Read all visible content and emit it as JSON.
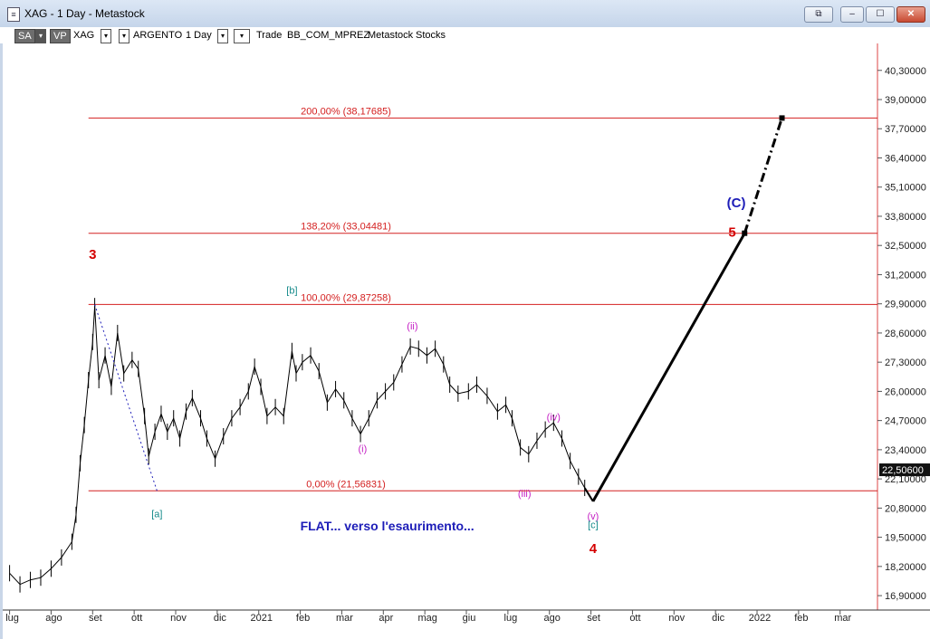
{
  "window": {
    "title": "XAG - 1 Day - Metastock",
    "buttons": {
      "restore": "⧉",
      "minimize": "–",
      "maximize": "☐",
      "close": "✕"
    }
  },
  "toolbar": {
    "sa": "SA",
    "vp": "VP",
    "symbol": "XAG",
    "name": "ARGENTO",
    "period": "1 Day",
    "trade": "Trade",
    "layout": "BB_COM_MPREZ",
    "source": "Metastock",
    "type": "Stocks",
    "box_glyph": "▾"
  },
  "colors": {
    "fib": "#d42020",
    "wave_major": "#d40000",
    "wave_c": "#1d1db8",
    "wave_minor": "#c41fc4",
    "wave_ab": "#148a8a",
    "price": "#000000"
  },
  "chart_data": {
    "type": "line",
    "symbol": "XAG",
    "ylim": [
      16.5,
      41.5
    ],
    "y_ticks": [
      "40,30000",
      "39,00000",
      "37,70000",
      "36,40000",
      "35,10000",
      "33,80000",
      "32,50000",
      "31,20000",
      "29,90000",
      "28,60000",
      "27,30000",
      "26,00000",
      "24,70000",
      "23,40000",
      "22,10000",
      "20,80000",
      "19,50000",
      "18,20000",
      "16,90000"
    ],
    "x_labels": [
      "lug",
      "ago",
      "set",
      "ott",
      "nov",
      "dic",
      "2021",
      "feb",
      "mar",
      "apr",
      "mag",
      "giu",
      "lug",
      "ago",
      "set",
      "ott",
      "nov",
      "dic",
      "2022",
      "feb",
      "mar"
    ],
    "last_price": "22,50600",
    "fib_levels": [
      {
        "label": "200,00% (38,17685)",
        "value": 38.17685
      },
      {
        "label": "138,20% (33,04481)",
        "value": 33.04481
      },
      {
        "label": "100,00% (29,87258)",
        "value": 29.87258
      },
      {
        "label": "0,00% (21,56831)",
        "value": 21.56831
      }
    ],
    "price_series": [
      {
        "t": 0,
        "v": 17.9
      },
      {
        "t": 0.25,
        "v": 17.4
      },
      {
        "t": 0.5,
        "v": 17.6
      },
      {
        "t": 0.75,
        "v": 17.7
      },
      {
        "t": 1,
        "v": 18.1
      },
      {
        "t": 1.25,
        "v": 18.6
      },
      {
        "t": 1.5,
        "v": 19.3
      },
      {
        "t": 1.6,
        "v": 20.5
      },
      {
        "t": 1.7,
        "v": 22.8
      },
      {
        "t": 1.8,
        "v": 24.5
      },
      {
        "t": 1.9,
        "v": 26.5
      },
      {
        "t": 2.0,
        "v": 28.2
      },
      {
        "t": 2.05,
        "v": 29.8
      },
      {
        "t": 2.15,
        "v": 26.5
      },
      {
        "t": 2.3,
        "v": 27.6
      },
      {
        "t": 2.45,
        "v": 26.2
      },
      {
        "t": 2.6,
        "v": 28.6
      },
      {
        "t": 2.75,
        "v": 26.8
      },
      {
        "t": 2.95,
        "v": 27.4
      },
      {
        "t": 3.1,
        "v": 27.0
      },
      {
        "t": 3.25,
        "v": 24.9
      },
      {
        "t": 3.35,
        "v": 23.1
      },
      {
        "t": 3.5,
        "v": 24.2
      },
      {
        "t": 3.65,
        "v": 25.0
      },
      {
        "t": 3.8,
        "v": 24.2
      },
      {
        "t": 3.95,
        "v": 24.8
      },
      {
        "t": 4.1,
        "v": 23.9
      },
      {
        "t": 4.25,
        "v": 25.1
      },
      {
        "t": 4.4,
        "v": 25.7
      },
      {
        "t": 4.6,
        "v": 24.8
      },
      {
        "t": 4.75,
        "v": 23.9
      },
      {
        "t": 4.95,
        "v": 23.0
      },
      {
        "t": 5.15,
        "v": 24.0
      },
      {
        "t": 5.35,
        "v": 24.8
      },
      {
        "t": 5.55,
        "v": 25.3
      },
      {
        "t": 5.75,
        "v": 26.0
      },
      {
        "t": 5.9,
        "v": 27.1
      },
      {
        "t": 6.05,
        "v": 26.2
      },
      {
        "t": 6.2,
        "v": 24.9
      },
      {
        "t": 6.4,
        "v": 25.3
      },
      {
        "t": 6.6,
        "v": 24.9
      },
      {
        "t": 6.8,
        "v": 27.8
      },
      {
        "t": 6.9,
        "v": 26.8
      },
      {
        "t": 7.05,
        "v": 27.3
      },
      {
        "t": 7.25,
        "v": 27.6
      },
      {
        "t": 7.45,
        "v": 26.9
      },
      {
        "t": 7.65,
        "v": 25.5
      },
      {
        "t": 7.85,
        "v": 26.1
      },
      {
        "t": 8.05,
        "v": 25.6
      },
      {
        "t": 8.25,
        "v": 24.8
      },
      {
        "t": 8.45,
        "v": 24.1
      },
      {
        "t": 8.65,
        "v": 24.8
      },
      {
        "t": 8.85,
        "v": 25.6
      },
      {
        "t": 9.05,
        "v": 26.0
      },
      {
        "t": 9.25,
        "v": 26.4
      },
      {
        "t": 9.45,
        "v": 27.2
      },
      {
        "t": 9.65,
        "v": 28.0
      },
      {
        "t": 9.85,
        "v": 27.9
      },
      {
        "t": 10.05,
        "v": 27.6
      },
      {
        "t": 10.25,
        "v": 27.9
      },
      {
        "t": 10.45,
        "v": 27.2
      },
      {
        "t": 10.6,
        "v": 26.3
      },
      {
        "t": 10.8,
        "v": 25.9
      },
      {
        "t": 11.05,
        "v": 26.0
      },
      {
        "t": 11.25,
        "v": 26.3
      },
      {
        "t": 11.5,
        "v": 25.8
      },
      {
        "t": 11.75,
        "v": 25.1
      },
      {
        "t": 11.95,
        "v": 25.4
      },
      {
        "t": 12.1,
        "v": 24.8
      },
      {
        "t": 12.3,
        "v": 23.5
      },
      {
        "t": 12.5,
        "v": 23.2
      },
      {
        "t": 12.7,
        "v": 23.8
      },
      {
        "t": 12.9,
        "v": 24.3
      },
      {
        "t": 13.1,
        "v": 24.6
      },
      {
        "t": 13.3,
        "v": 23.9
      },
      {
        "t": 13.5,
        "v": 22.9
      },
      {
        "t": 13.7,
        "v": 22.2
      },
      {
        "t": 13.85,
        "v": 21.7
      }
    ],
    "swings": [
      {
        "name": "3",
        "t": 2.05,
        "v": 29.87
      },
      {
        "name": "[a]",
        "t": 3.55,
        "v": 21.57
      },
      {
        "name": "[b]",
        "t": 6.8,
        "v": 30.0
      },
      {
        "name": "(i)",
        "t": 8.5,
        "v": 24.0
      },
      {
        "name": "(ii)",
        "t": 9.75,
        "v": 28.3
      },
      {
        "name": "(iii)",
        "t": 12.45,
        "v": 22.9
      },
      {
        "name": "(iv)",
        "t": 13.15,
        "v": 24.8
      },
      {
        "name": "(v)",
        "t": 14.05,
        "v": 21.1
      }
    ],
    "projection": [
      {
        "from": {
          "t": 14.05,
          "v": 21.1
        },
        "to": {
          "t": 17.7,
          "v": 33.04
        },
        "style": "solid"
      },
      {
        "from": {
          "t": 17.7,
          "v": 33.04
        },
        "to": {
          "t": 18.6,
          "v": 38.18
        },
        "style": "dashdot"
      }
    ],
    "annotations": [
      {
        "text": "3",
        "role": "wave_major"
      },
      {
        "text": "[a]",
        "role": "wave_ab"
      },
      {
        "text": "[b]",
        "role": "wave_ab"
      },
      {
        "text": "(i)",
        "role": "wave_minor"
      },
      {
        "text": "(ii)",
        "role": "wave_minor"
      },
      {
        "text": "(iii)",
        "role": "wave_minor"
      },
      {
        "text": "(iv)",
        "role": "wave_minor"
      },
      {
        "text": "(v)",
        "role": "wave_minor"
      },
      {
        "text": "[c]",
        "role": "wave_ab"
      },
      {
        "text": "4",
        "role": "wave_major"
      },
      {
        "text": "(C)",
        "role": "wave_c"
      },
      {
        "text": "5",
        "role": "wave_major"
      },
      {
        "text": "FLAT... verso l'esaurimento...",
        "role": "wave_c"
      }
    ]
  }
}
